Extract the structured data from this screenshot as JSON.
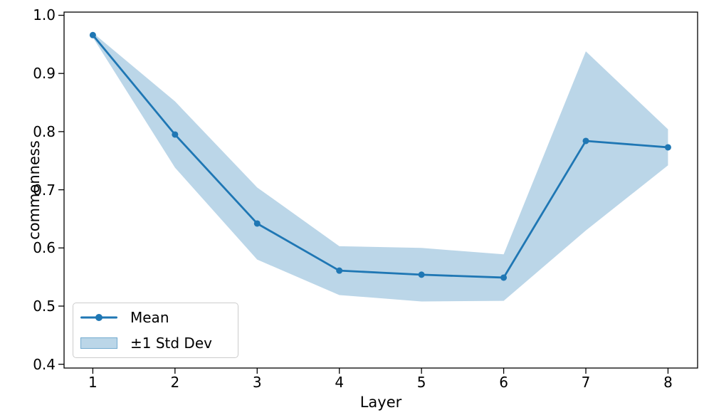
{
  "chart_data": {
    "type": "line",
    "title": "",
    "xlabel": "Layer",
    "ylabel": "commonness",
    "x": [
      1,
      2,
      3,
      4,
      5,
      6,
      7,
      8
    ],
    "series": [
      {
        "name": "Mean",
        "values": [
          0.966,
          0.795,
          0.642,
          0.561,
          0.554,
          0.549,
          0.784,
          0.773
        ]
      }
    ],
    "std": [
      0.004,
      0.057,
      0.062,
      0.042,
      0.046,
      0.04,
      0.154,
      0.031
    ],
    "band": {
      "name": "±1 Std Dev",
      "upper": [
        0.97,
        0.852,
        0.704,
        0.603,
        0.6,
        0.589,
        0.938,
        0.804
      ],
      "lower": [
        0.962,
        0.738,
        0.58,
        0.519,
        0.508,
        0.509,
        0.63,
        0.742
      ]
    },
    "xticks": [
      1,
      2,
      3,
      4,
      5,
      6,
      7,
      8
    ],
    "yticks": [
      0.4,
      0.5,
      0.6,
      0.7,
      0.8,
      0.9,
      1.0
    ],
    "xlim": [
      0.65,
      8.36
    ],
    "ylim": [
      0.3935,
      1.0055
    ],
    "grid": false,
    "legend_position": "lower-left",
    "colors": {
      "line": "#1f77b4",
      "marker": "#1f77b4",
      "band_fill": "#1f77b4",
      "band_alpha": 0.3,
      "spine": "#000000",
      "legend_border": "#cccccc"
    }
  },
  "axes": {
    "xlabel": "Layer",
    "ylabel": "commonness"
  },
  "legend": {
    "mean_label": "Mean",
    "band_label": "±1 Std Dev"
  }
}
